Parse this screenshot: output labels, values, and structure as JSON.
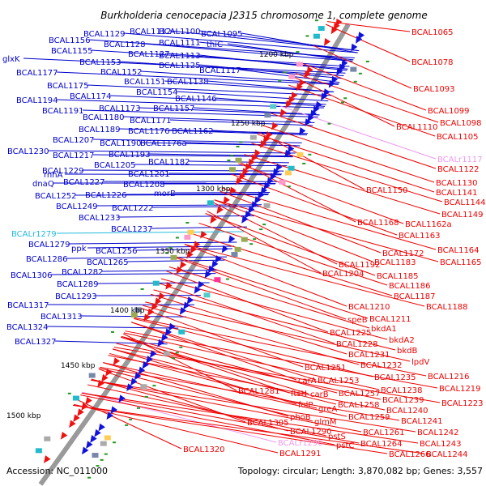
{
  "title": "Burkholderia cenocepacia J2315 chromosome 1, complete genome",
  "footer": {
    "accession": "Accession: NC_011000",
    "summary": "Topology: circular; Length: 3,870,082 bp; Genes: 3,557"
  },
  "colors": {
    "left_labels": "#0000cc",
    "right_labels": "#ee0000",
    "rna_left": "#22bbdd",
    "rna_right": "#ee99ee",
    "backbone": "#888888"
  },
  "ticks": [
    {
      "label": "1200 kbp"
    },
    {
      "label": "1250 kbp"
    },
    {
      "label": "1300 kbp"
    },
    {
      "label": "1350 kbp"
    },
    {
      "label": "1400 kbp"
    },
    {
      "label": "1450 kbp"
    },
    {
      "label": "1500 kbp"
    }
  ],
  "left_labels": [
    "BCAL1095",
    "BCAL1100",
    "BCAL1112",
    "BCAL1129",
    "thiC",
    "BCAL1111",
    "BCAL1128",
    "BCAL1156",
    "BCAL1127",
    "BCAL1113",
    "BCAL1155",
    "glxK",
    "BCAL1153",
    "BCAL1125",
    "BCAL1117",
    "BCAL1177",
    "BCAL1152",
    "BCAL1151",
    "BCAL1138",
    "BCAL1175",
    "BCAL1154",
    "BCAL1194",
    "BCAL1174",
    "BCAL1146",
    "BCAL1191",
    "BCAL1173",
    "BCAL1157",
    "BCAL1180",
    "BCAL1171",
    "BCAL1189",
    "BCAL1176",
    "BCAL1162",
    "BCAL1207",
    "BCAL1190",
    "BCAL1176a",
    "BCAL1230",
    "BCAL1217",
    "BCAL1193",
    "BCAL1205",
    "BCAL1182",
    "rnhA",
    "BCAL1229",
    "BCAL1201",
    "dnaQ",
    "BCAL1227",
    "BCAL1208",
    "BCAL1252",
    "BCAL1226",
    "morB",
    "BCAL1249",
    "BCAL1222",
    "BCAL1233",
    "BCAL1237",
    "BCALr1279",
    "BCAL1279",
    "ppk",
    "BCAL1256",
    "BCAL1286",
    "BCAL1265",
    "BCAL1282",
    "BCAL1306",
    "BCAL1289",
    "BCAL1293",
    "BCAL1317",
    "BCAL1313",
    "BCAL1324",
    "BCAL1327"
  ],
  "right_labels": [
    "BCAL1065",
    "BCAL1078",
    "BCAL1093",
    "BCAL1099",
    "BCAL1098",
    "BCAL1110",
    "BCAL1105",
    "BCALr1117",
    "BCAL1122",
    "BCAL1130",
    "BCAL1141",
    "BCAL1150",
    "BCAL1144",
    "BCAL1149",
    "BCAL1168",
    "BCAL1162a",
    "BCAL1163",
    "BCAL1164",
    "BCAL1172",
    "BCAL1165",
    "BCAL1192",
    "BCAL1183",
    "BCAL1204",
    "BCAL1185",
    "BCAL1186",
    "BCAL1187",
    "BCAL1188",
    "BCAL1210",
    "speB",
    "BCAL1211",
    "bkdA1",
    "BCAL1225",
    "bkdA2",
    "BCAL1228",
    "bkdB",
    "BCAL1231",
    "lpdV",
    "BCAL1232",
    "BCAL1251",
    "carA",
    "BCAL1253",
    "BCAL1235",
    "BCAL1216",
    "BCAL1281",
    "ftsH",
    "carB",
    "BCAL1257",
    "BCAL1238",
    "BCAL1219",
    "folP",
    "greA",
    "BCAL1258",
    "BCAL1239",
    "BCAL1223",
    "phoB",
    "glmM",
    "BCAL1259",
    "BCAL1240",
    "BCAL1305",
    "BCAL1241",
    "BCAL1290",
    "BCAL1261",
    "BCAL1242",
    "BCALr1290",
    "pstS",
    "BCAL1264",
    "BCAL1243",
    "BCAL1320",
    "BCAL1291",
    "pstC",
    "BCAL1266",
    "BCAL1244"
  ]
}
